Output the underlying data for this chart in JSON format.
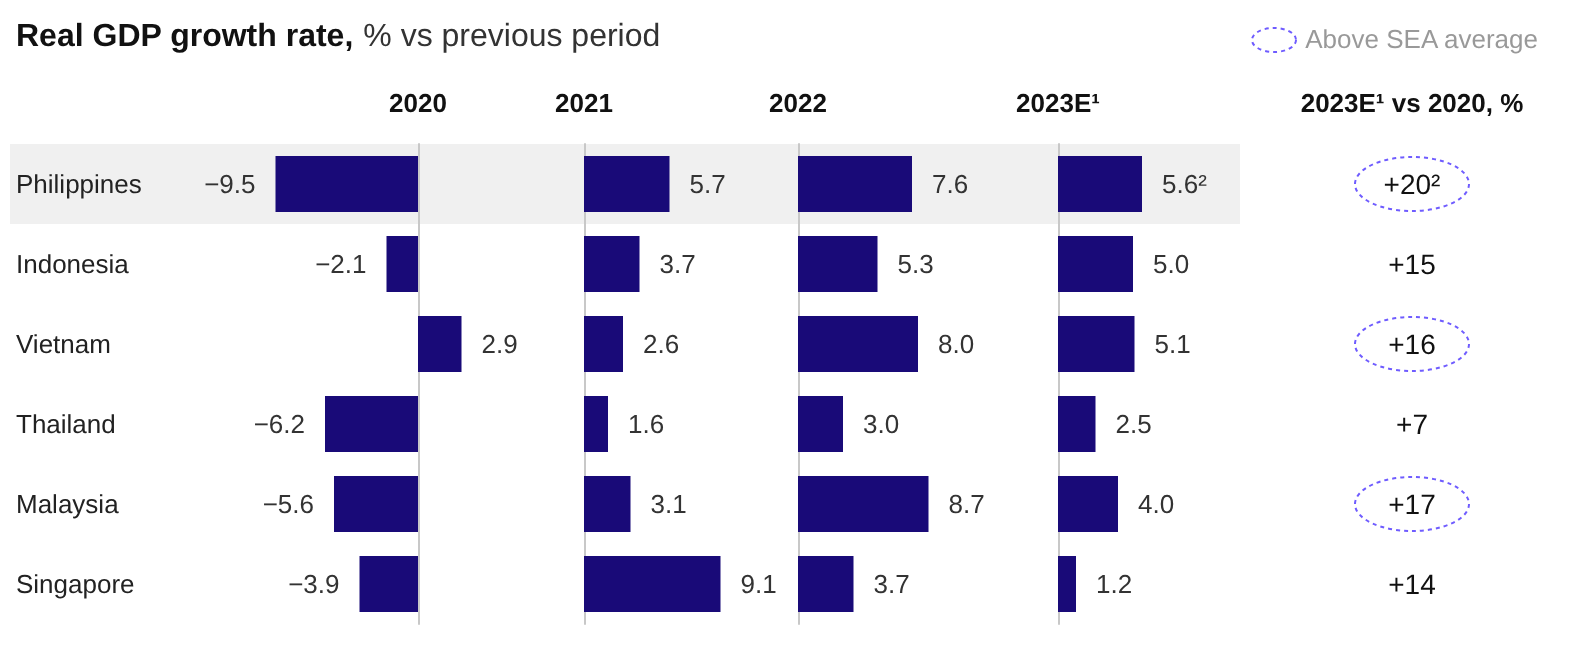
{
  "chart_data": [
    {
      "type": "bar",
      "orientation": "horizontal",
      "title": "Real GDP growth rate,",
      "subtitle": "% vs previous period",
      "xlabel": "2020",
      "categories": [
        "Philippines",
        "Indonesia",
        "Vietnam",
        "Thailand",
        "Malaysia",
        "Singapore"
      ],
      "values": [
        -9.5,
        -2.1,
        2.9,
        -6.2,
        -5.6,
        -3.9
      ],
      "color": "#190a78",
      "tick_labels": "y",
      "data_labels": true,
      "bands": [
        {
          "axis": "y",
          "from": "Philippines",
          "to": "Philippines",
          "color": "#f0f0f0"
        }
      ]
    },
    {
      "type": "bar",
      "orientation": "horizontal",
      "xlabel": "2021",
      "categories": [
        "Philippines",
        "Indonesia",
        "Vietnam",
        "Thailand",
        "Malaysia",
        "Singapore"
      ],
      "values": [
        5.7,
        3.7,
        2.6,
        1.6,
        3.1,
        9.1
      ],
      "color": "#190a78",
      "tick_labels": false,
      "data_labels": true,
      "bands": [
        {
          "axis": "y",
          "from": "Philippines",
          "to": "Philippines",
          "color": "#f0f0f0"
        }
      ]
    },
    {
      "type": "bar",
      "orientation": "horizontal",
      "xlabel": "2022",
      "categories": [
        "Philippines",
        "Indonesia",
        "Vietnam",
        "Thailand",
        "Malaysia",
        "Singapore"
      ],
      "values": [
        7.6,
        5.3,
        8.0,
        3.0,
        8.7,
        3.7
      ],
      "value_labels": [
        "7.6",
        "5.3",
        "8.0",
        "3.0",
        "8.7",
        "3.7"
      ],
      "color": "#190a78",
      "tick_labels": false,
      "bands": [
        {
          "axis": "y",
          "from": "Philippines",
          "to": "Philippines",
          "color": "#f0f0f0"
        }
      ]
    },
    {
      "type": "bar",
      "orientation": "horizontal",
      "xlabel": "2023E¹",
      "categories": [
        "Philippines",
        "Indonesia",
        "Vietnam",
        "Thailand",
        "Malaysia",
        "Singapore"
      ],
      "values": [
        5.6,
        5.0,
        5.1,
        2.5,
        4.0,
        1.2
      ],
      "value_labels": [
        "5.6²",
        "5.0",
        "5.1",
        "2.5",
        "4.0",
        "1.2"
      ],
      "color": "#190a78",
      "tick_labels": false,
      "bands": [
        {
          "axis": "y",
          "from": "Philippines",
          "to": "Philippines",
          "color": "#f0f0f0"
        }
      ]
    },
    {
      "type": "other",
      "xlabel": "2023E¹ vs 2020, %",
      "values": [
        20,
        15,
        16,
        7,
        17,
        14
      ],
      "value_labels": [
        "+20²",
        "+15",
        "+16",
        "+7",
        "+17",
        "+14"
      ],
      "colors": [
        "#6f5cff",
        null,
        "#6f5cff",
        null,
        "#6f5cff",
        null
      ],
      "annotations": [
        "Above SEA average"
      ]
    }
  ]
}
